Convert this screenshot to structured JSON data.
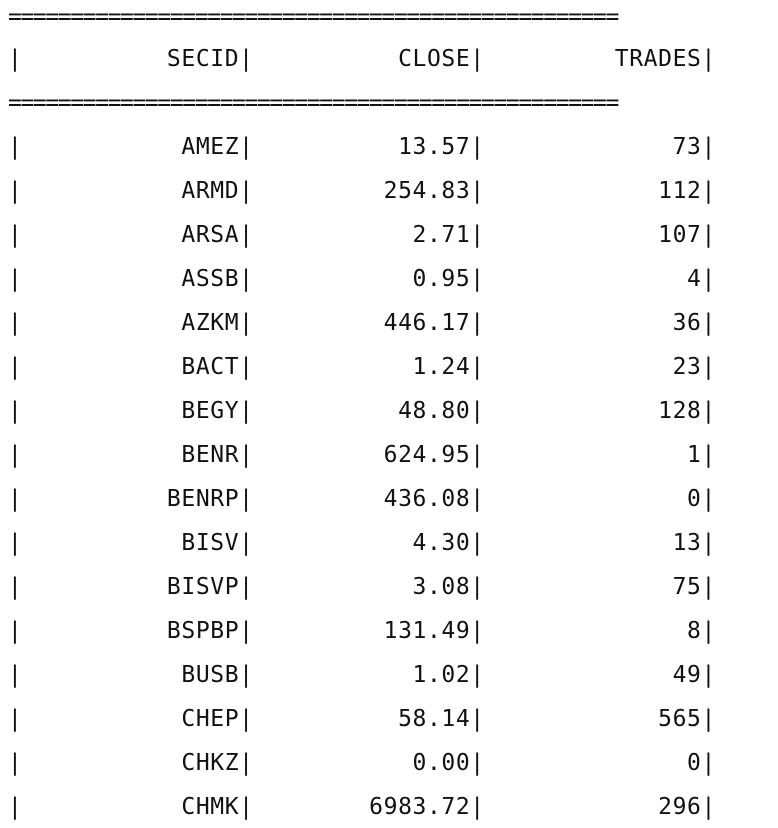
{
  "separator": "=================================================",
  "columns": [
    {
      "key": "secid",
      "label": "SECID"
    },
    {
      "key": "close",
      "label": "CLOSE"
    },
    {
      "key": "trades",
      "label": "TRADES"
    }
  ],
  "rows": [
    {
      "secid": "AMEZ",
      "close": "13.57",
      "trades": "73"
    },
    {
      "secid": "ARMD",
      "close": "254.83",
      "trades": "112"
    },
    {
      "secid": "ARSA",
      "close": "2.71",
      "trades": "107"
    },
    {
      "secid": "ASSB",
      "close": "0.95",
      "trades": "4"
    },
    {
      "secid": "AZKM",
      "close": "446.17",
      "trades": "36"
    },
    {
      "secid": "BACT",
      "close": "1.24",
      "trades": "23"
    },
    {
      "secid": "BEGY",
      "close": "48.80",
      "trades": "128"
    },
    {
      "secid": "BENR",
      "close": "624.95",
      "trades": "1"
    },
    {
      "secid": "BENRP",
      "close": "436.08",
      "trades": "0"
    },
    {
      "secid": "BISV",
      "close": "4.30",
      "trades": "13"
    },
    {
      "secid": "BISVP",
      "close": "3.08",
      "trades": "75"
    },
    {
      "secid": "BSPBP",
      "close": "131.49",
      "trades": "8"
    },
    {
      "secid": "BUSB",
      "close": "1.02",
      "trades": "49"
    },
    {
      "secid": "CHEP",
      "close": "58.14",
      "trades": "565"
    },
    {
      "secid": "CHKZ",
      "close": "0.00",
      "trades": "0"
    },
    {
      "secid": "CHMK",
      "close": "6983.72",
      "trades": "296"
    }
  ]
}
